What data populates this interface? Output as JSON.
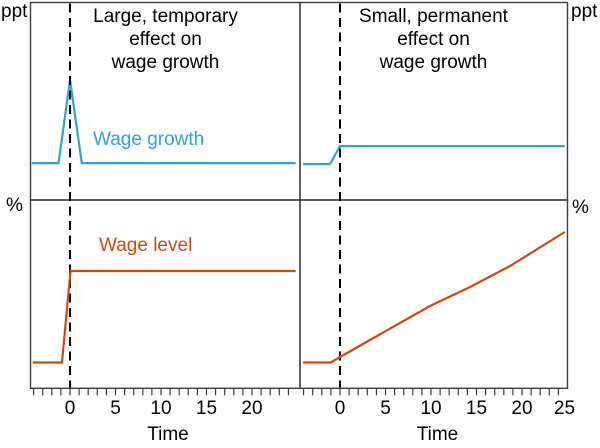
{
  "colors": {
    "wage_growth_line": "#2ea3dc",
    "wage_level_line": "#d1490f",
    "frame": "#3c3c3c",
    "dashed_line": "#000000",
    "text": "#000000",
    "background": "#ffffff"
  },
  "labels": {
    "unit_top_left": "ppt",
    "unit_top_right": "ppt",
    "unit_bottom_left": "%",
    "unit_bottom_right": "%",
    "title_left": "Large, temporary\neffect on\nwage growth",
    "title_right": "Small, permanent\neffect on\nwage growth",
    "wage_growth": "Wage growth",
    "wage_level": "Wage level",
    "xaxis_left": "Time",
    "xaxis_right": "Time"
  },
  "chart_data": {
    "type": "line",
    "title_left_panel_pair": "Large, temporary effect on wage growth",
    "title_right_panel_pair": "Small, permanent effect on wage growth",
    "x_axis_label": "Time",
    "grid": false,
    "legend_position": "inline-labels",
    "panels": [
      {
        "id": "top_left",
        "column": "left",
        "row": "top",
        "y_unit": "ppt",
        "xlim": [
          -4.3,
          25.3
        ],
        "ylim": [
          0,
          10
        ],
        "yticks": [],
        "x_major_ticks": [],
        "x_minor_range": null,
        "event_line_x": 0,
        "series": [
          {
            "name": "Wage growth",
            "color_key": "wage_growth_line",
            "points": [
              [
                -4.2,
                1.87
              ],
              [
                -1.25,
                1.87
              ],
              [
                0,
                6.08
              ],
              [
                1.3,
                1.87
              ],
              [
                24.8,
                1.87
              ]
            ]
          }
        ]
      },
      {
        "id": "top_right",
        "column": "right",
        "row": "top",
        "y_unit": "ppt",
        "xlim": [
          -4.4,
          25.0
        ],
        "ylim": [
          0,
          10
        ],
        "yticks": [],
        "x_major_ticks": [],
        "x_minor_range": null,
        "event_line_x": 0,
        "series": [
          {
            "name": "Wage growth",
            "color_key": "wage_growth_line",
            "points": [
              [
                -4.05,
                1.82
              ],
              [
                -1.1,
                1.82
              ],
              [
                0,
                2.73
              ],
              [
                24.7,
                2.73
              ]
            ]
          }
        ]
      },
      {
        "id": "bottom_left",
        "column": "left",
        "row": "bottom",
        "y_unit": "%",
        "x_axis_label": "Time",
        "xlim": [
          -4.3,
          25.3
        ],
        "ylim": [
          0,
          10
        ],
        "yticks": [],
        "x_major_ticks": [
          0,
          5,
          10,
          15,
          20
        ],
        "x_minor_step": 1,
        "x_minor_range": [
          -4,
          24
        ],
        "event_line_x": 0,
        "series": [
          {
            "name": "Wage level",
            "color_key": "wage_level_line",
            "points": [
              [
                -4.1,
                1.37
              ],
              [
                -0.88,
                1.37
              ],
              [
                0.05,
                6.23
              ],
              [
                24.8,
                6.23
              ]
            ]
          }
        ]
      },
      {
        "id": "bottom_right",
        "column": "right",
        "row": "bottom",
        "y_unit": "%",
        "x_axis_label": "Time",
        "xlim": [
          -4.4,
          25.0
        ],
        "ylim": [
          0,
          10
        ],
        "yticks": [],
        "x_major_ticks": [
          0,
          5,
          10,
          15,
          20,
          25
        ],
        "x_minor_step": 1,
        "x_minor_range": [
          -4,
          24
        ],
        "event_line_x": 0,
        "series": [
          {
            "name": "Wage level",
            "color_key": "wage_level_line",
            "points": [
              [
                -4.07,
                1.37
              ],
              [
                -0.99,
                1.37
              ],
              [
                0,
                1.66
              ],
              [
                9.89,
                4.37
              ],
              [
                14.3,
                5.38
              ],
              [
                18.7,
                6.5
              ],
              [
                24.7,
                8.3
              ]
            ]
          }
        ]
      }
    ]
  }
}
